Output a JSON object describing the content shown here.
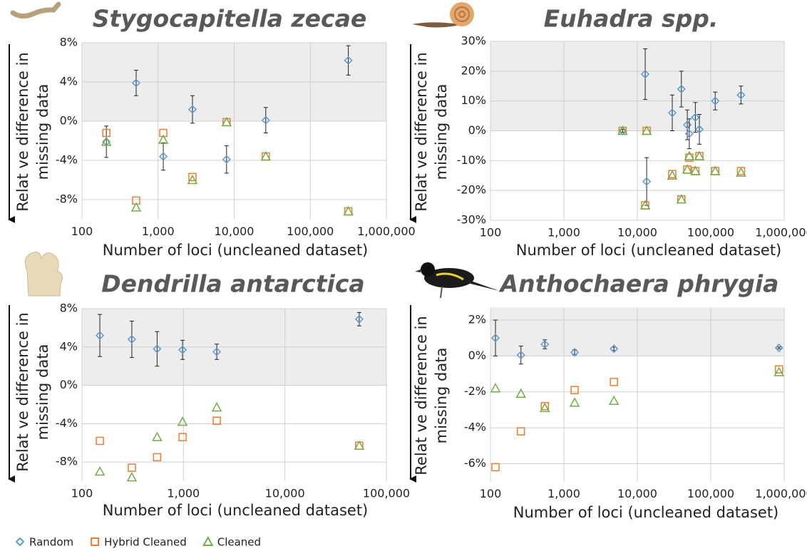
{
  "chart_data": [
    {
      "type": "scatter",
      "title": "Stygocapitella zecae",
      "xlabel": "Number of loci (uncleaned dataset)",
      "ylabel": [
        "Relat ve difference in",
        "missing data"
      ],
      "x": [
        209,
        515,
        1170,
        2830,
        7940,
        26000,
        316000
      ],
      "xlim": [
        100,
        1000000
      ],
      "xlog": true,
      "xticks": [
        100,
        {
          "value": 1000,
          "label": "1,000"
        },
        {
          "value": 10000,
          "label": "10,000"
        },
        {
          "value": 100000,
          "label": "100,000"
        },
        {
          "value": 1000000,
          "label": "1,000,000"
        }
      ],
      "ylim": [
        -10,
        8
      ],
      "yticks": [
        {
          "value": -8,
          "label": "-8%"
        },
        {
          "value": -4,
          "label": "-4%"
        },
        {
          "value": 0,
          "label": "0%"
        },
        {
          "value": 4,
          "label": "4%"
        },
        {
          "value": 8,
          "label": "8%"
        }
      ],
      "grid": true,
      "series": [
        {
          "name": "Random",
          "color": "#5b9bd5",
          "marker": "diamond",
          "values": [
            -2.1,
            3.9,
            -3.6,
            1.2,
            -3.9,
            0.1,
            6.2
          ],
          "errors": [
            1.6,
            1.3,
            1.4,
            1.4,
            1.4,
            1.3,
            1.5
          ]
        },
        {
          "name": "Hybrid Cleaned",
          "color": "#ed7d31",
          "marker": "square",
          "values": [
            -1.2,
            -8.1,
            -1.2,
            -5.7,
            -0.1,
            -3.6,
            -9.2
          ]
        },
        {
          "name": "Cleaned",
          "color": "#70ad47",
          "marker": "triangle",
          "values": [
            -2.1,
            -8.8,
            -1.9,
            -6.0,
            -0.1,
            -3.6,
            -9.2
          ]
        }
      ]
    },
    {
      "type": "scatter",
      "title": "Euhadra spp.",
      "xlabel": "Number of loci (uncleaned dataset)",
      "ylabel": [
        "Relat ve difference in",
        "missing data"
      ],
      "x": [
        6300,
        13400,
        12800,
        29900,
        39800,
        47900,
        51000,
        61700,
        70000,
        115000,
        258000
      ],
      "xlim": [
        100,
        1000000
      ],
      "xlog": true,
      "xticks": [
        100,
        {
          "value": 1000,
          "label": "1,000"
        },
        {
          "value": 10000,
          "label": "10,000"
        },
        {
          "value": 100000,
          "label": "100,000"
        },
        {
          "value": 1000000,
          "label": "1,000,000"
        }
      ],
      "ylim": [
        -30,
        30
      ],
      "yticks": [
        {
          "value": -30,
          "label": "-30%"
        },
        {
          "value": -20,
          "label": "-20%"
        },
        {
          "value": -10,
          "label": "-10%"
        },
        {
          "value": 0,
          "label": "0%"
        },
        {
          "value": 10,
          "label": "10%"
        },
        {
          "value": 20,
          "label": "20%"
        },
        {
          "value": 30,
          "label": "30%"
        }
      ],
      "grid": true,
      "series": [
        {
          "color": "#5b9bd5",
          "marker": "diamond",
          "values": [
            0,
            -17,
            19,
            6,
            14,
            2,
            -1,
            4.5,
            0.5,
            10,
            12
          ],
          "errors": [
            0.5,
            8,
            8.5,
            6,
            6,
            5,
            5,
            5,
            5,
            3,
            3
          ]
        },
        {
          "color": "#ed7d31",
          "marker": "square",
          "values": [
            0,
            0,
            -25,
            -14.5,
            -23,
            -13,
            -9,
            -13.5,
            -8.5,
            -13.5,
            -13.5
          ]
        },
        {
          "color": "#70ad47",
          "marker": "triangle",
          "values": [
            0,
            0,
            -25,
            -15,
            -23,
            -13,
            -8.5,
            -13.5,
            -8.5,
            -13.5,
            -14
          ]
        }
      ]
    },
    {
      "type": "scatter",
      "title": "Dendrilla antarctica",
      "xlabel": "Number of loci (uncleaned dataset)",
      "ylabel": [
        "Relat ve difference in",
        "missing data"
      ],
      "x": [
        150,
        310,
        550,
        980,
        2130,
        54000
      ],
      "xlim": [
        100,
        100000
      ],
      "xlog": true,
      "xticks": [
        100,
        {
          "value": 1000,
          "label": "1,000"
        },
        {
          "value": 10000,
          "label": "10,000"
        },
        {
          "value": 100000,
          "label": "100,000"
        }
      ],
      "ylim": [
        -10,
        8
      ],
      "yticks": [
        {
          "value": -8,
          "label": "-8%"
        },
        {
          "value": -4,
          "label": "-4%"
        },
        {
          "value": 0,
          "label": "0%"
        },
        {
          "value": 4,
          "label": "4%"
        },
        {
          "value": 8,
          "label": "8%"
        }
      ],
      "grid": true,
      "series": [
        {
          "color": "#5b9bd5",
          "marker": "diamond",
          "values": [
            5.2,
            4.8,
            3.8,
            3.7,
            3.5,
            6.9
          ],
          "errors": [
            2.2,
            1.9,
            1.8,
            1.0,
            0.8,
            0.7
          ]
        },
        {
          "color": "#ed7d31",
          "marker": "square",
          "values": [
            -5.8,
            -8.6,
            -7.5,
            -5.4,
            -3.7,
            -6.3
          ]
        },
        {
          "color": "#70ad47",
          "marker": "triangle",
          "values": [
            -9.0,
            -9.6,
            -5.4,
            -3.8,
            -2.3,
            -6.3
          ]
        }
      ]
    },
    {
      "type": "scatter",
      "title": "Anthochaera phrygia",
      "xlabel": "Number of loci (uncleaned dataset)",
      "ylabel": [
        "Relat ve difference in",
        "missing data"
      ],
      "x": [
        117,
        260,
        550,
        1400,
        4800,
        850000
      ],
      "xlim": [
        100,
        1000000
      ],
      "xlog": true,
      "xticks": [
        100,
        {
          "value": 1000,
          "label": "1,000"
        },
        {
          "value": 10000,
          "label": "10,000"
        },
        {
          "value": 100000,
          "label": "100,000"
        },
        {
          "value": 1000000,
          "label": "1,000,000"
        }
      ],
      "ylim": [
        -7,
        2.7
      ],
      "yticks": [
        {
          "value": -6,
          "label": "-6%"
        },
        {
          "value": -4,
          "label": "-4%"
        },
        {
          "value": -2,
          "label": "-2%"
        },
        {
          "value": 0,
          "label": "0%"
        },
        {
          "value": 2,
          "label": "2%"
        }
      ],
      "grid": true,
      "series": [
        {
          "color": "#5b9bd5",
          "marker": "diamond",
          "values": [
            1.0,
            0.05,
            0.65,
            0.2,
            0.4,
            0.45
          ],
          "errors": [
            1.0,
            0.5,
            0.25,
            0.15,
            0.1,
            0.05
          ]
        },
        {
          "color": "#ed7d31",
          "marker": "square",
          "values": [
            -6.2,
            -4.2,
            -2.8,
            -1.9,
            -1.45,
            -0.75
          ]
        },
        {
          "color": "#70ad47",
          "marker": "triangle",
          "values": [
            -1.8,
            -2.1,
            -2.9,
            -2.6,
            -2.5,
            -0.9
          ]
        }
      ]
    }
  ]
}
